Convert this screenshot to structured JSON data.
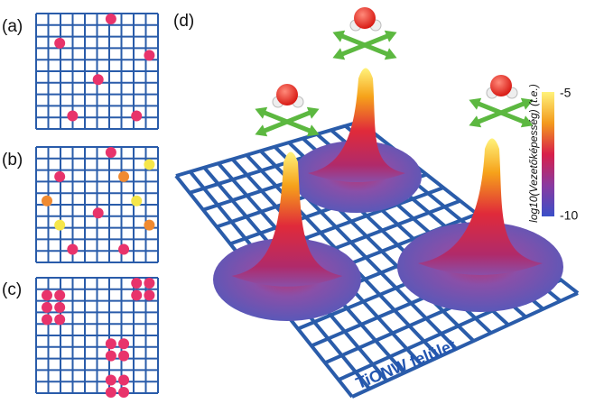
{
  "panel_labels": [
    "(a)",
    "(b)",
    "(c)",
    "(d)"
  ],
  "surface_label": "TiONW felület",
  "colorbar": {
    "label": "log10(Vezetőképesség) (t.e.)",
    "ticks": [
      "-5",
      "-10"
    ]
  }
}
